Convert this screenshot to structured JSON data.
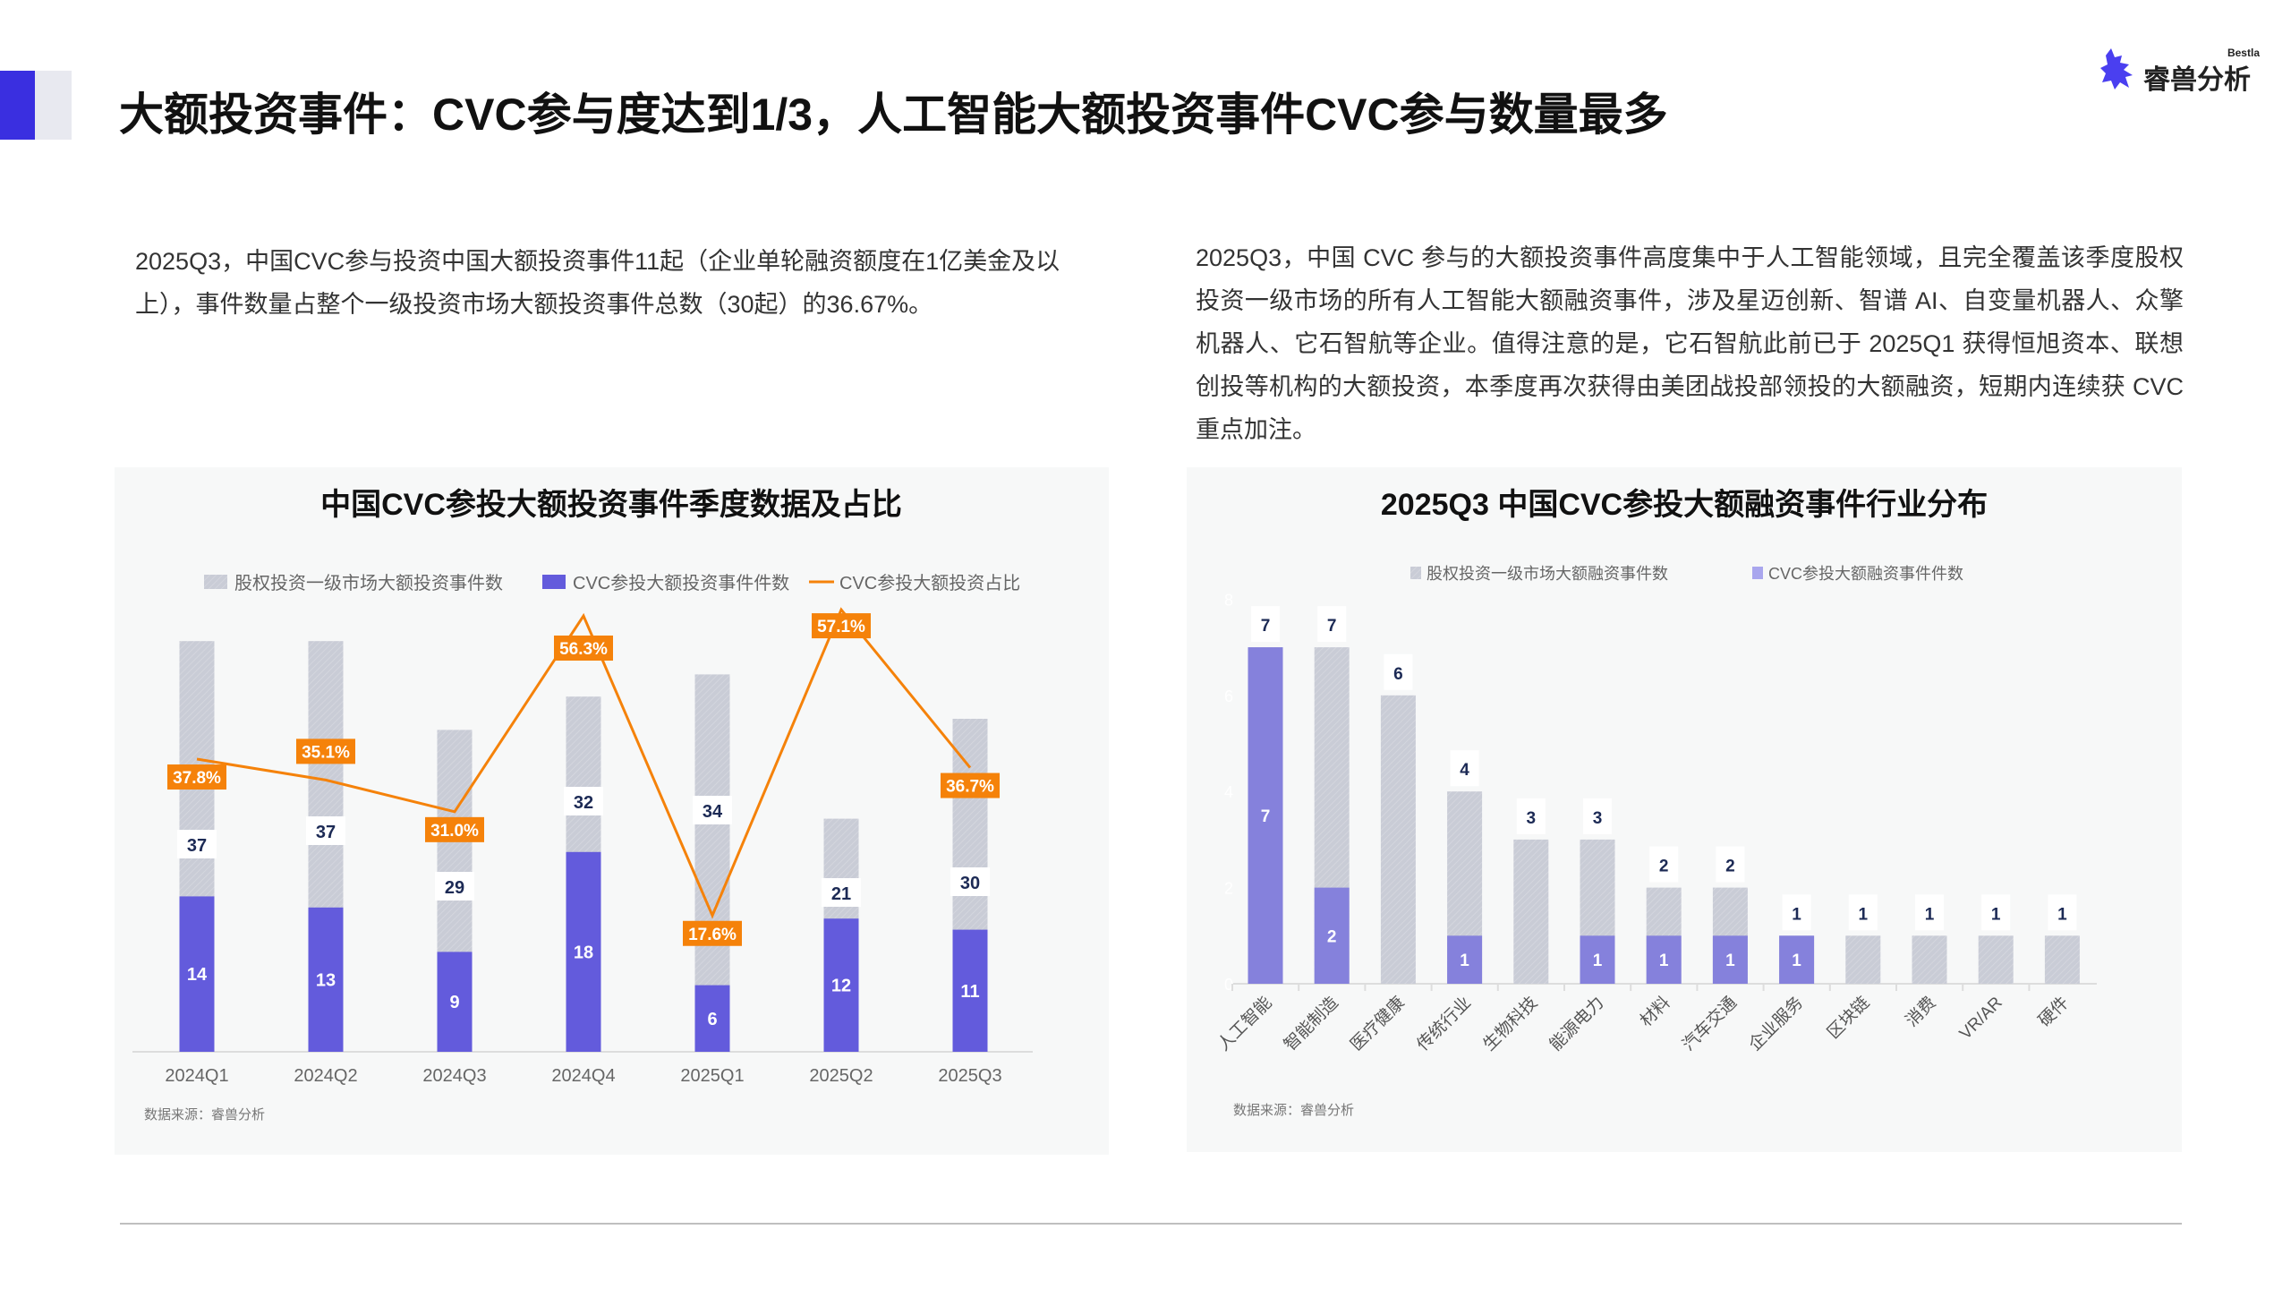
{
  "header": {
    "title": "大额投资事件：CVC参与度达到1/3，人工智能大额投资事件CVC参与数量最多",
    "logo_text": "睿兽分析",
    "logo_en": "Bestla",
    "accent_color": "#3a2fe0"
  },
  "paragraphs": {
    "left": "2025Q3，中国CVC参与投资中国大额投资事件11起（企业单轮融资额度在1亿美金及以上），事件数量占整个一级投资市场大额投资事件总数（30起）的36.67%。",
    "right": "2025Q3，中国 CVC 参与的大额投资事件高度集中于人工智能领域，且完全覆盖该季度股权投资一级市场的所有人工智能大额融资事件，涉及星迈创新、智谱 AI、自变量机器人、众擎机器人、它石智航等企业。值得注意的是，它石智航此前已于 2025Q1 获得恒旭资本、联想创投等机构的大额投资，本季度再次获得由美团战投部领投的大额融资，短期内连续获 CVC 重点加注。"
  },
  "chart_data": [
    {
      "type": "bar",
      "title": "中国CVC参投大额投资事件季度数据及占比",
      "categories": [
        "2024Q1",
        "2024Q2",
        "2024Q3",
        "2024Q4",
        "2025Q1",
        "2025Q2",
        "2025Q3"
      ],
      "series": [
        {
          "name": "股权投资一级市场大额投资事件数",
          "values": [
            37,
            37,
            29,
            32,
            34,
            21,
            30
          ],
          "color": "#c9ccd6",
          "kind": "bar"
        },
        {
          "name": "CVC参投大额投资事件件数",
          "values": [
            14,
            13,
            9,
            18,
            6,
            12,
            11
          ],
          "color": "#635bdc",
          "kind": "bar"
        },
        {
          "name": "CVC参投大额投资占比",
          "values": [
            37.8,
            35.1,
            31.0,
            56.3,
            17.6,
            57.1,
            36.7
          ],
          "labels": [
            "37.8%",
            "35.1%",
            "31.0%",
            "56.3%",
            "17.6%",
            "57.1%",
            "36.7%"
          ],
          "color": "#f5820a",
          "kind": "line",
          "unit": "%"
        }
      ],
      "ylim": [
        0,
        40
      ],
      "y2lim": [
        0,
        60
      ],
      "grid": false,
      "legend": "top",
      "source": "数据来源：睿兽分析"
    },
    {
      "type": "bar",
      "title": "2025Q3  中国CVC参投大额融资事件行业分布",
      "categories": [
        "人工智能",
        "智能制造",
        "医疗健康",
        "传统行业",
        "生物科技",
        "能源电力",
        "材料",
        "汽车交通",
        "企业服务",
        "区块链",
        "消费",
        "VR/AR",
        "硬件"
      ],
      "series": [
        {
          "name": "股权投资一级市场大额融资事件数",
          "values": [
            7,
            7,
            6,
            4,
            3,
            3,
            2,
            2,
            1,
            1,
            1,
            1,
            1
          ],
          "color": "#c9ccd6"
        },
        {
          "name": "CVC参投大额融资事件件数",
          "values": [
            7,
            2,
            0,
            1,
            0,
            1,
            1,
            1,
            1,
            0,
            0,
            0,
            0
          ],
          "color": "#8581dc"
        }
      ],
      "ylim": [
        0,
        8
      ],
      "yticks": [
        "0",
        "2",
        "4",
        "6",
        "8"
      ],
      "grid": false,
      "legend": "top",
      "source": "数据来源：睿兽分析"
    }
  ]
}
